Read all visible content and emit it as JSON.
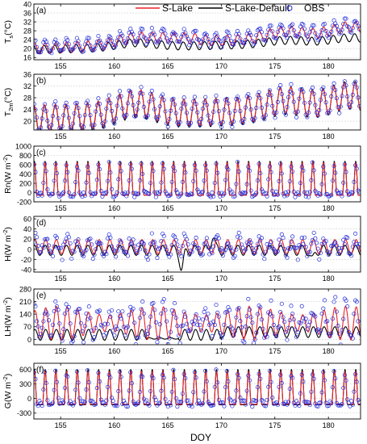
{
  "chart_data": {
    "type": "line",
    "xlabel": "DOY",
    "xlim": [
      152.5,
      183
    ],
    "xticks": [
      155,
      160,
      165,
      170,
      175,
      180
    ],
    "legend": {
      "placement": "top",
      "entries": [
        {
          "name": "S-Lake",
          "color": "#e8232a",
          "marker": "line"
        },
        {
          "name": "S-Lake-Default",
          "color": "#000000",
          "marker": "line"
        },
        {
          "name": "OBS",
          "color": "#1f2bd8",
          "marker": "circle"
        }
      ]
    },
    "grid": "horizontal-dotted",
    "panels": [
      {
        "label": "(a)",
        "ylabel": "Ts(°C)",
        "ylabel_main": "T",
        "ylabel_sub": "s",
        "ylabel_unit": "(°C)",
        "ylim": [
          15,
          40
        ],
        "yticks": [
          16,
          20,
          24,
          28,
          32,
          36,
          40
        ],
        "series": {
          "S-Lake": {
            "base": 20,
            "end": 26,
            "bumps": [
              [
                162,
                3
              ],
              [
                166,
                2
              ],
              [
                176,
                3
              ],
              [
                182,
                4
              ]
            ],
            "amp": 2.4,
            "phase": 0.3
          },
          "S-Lake-Default": {
            "base": 19.5,
            "end": 23,
            "bumps": [
              [
                162,
                2
              ],
              [
                176,
                1.5
              ],
              [
                182,
                2
              ]
            ],
            "amp": 1.8,
            "phase": 0.2
          },
          "OBS": {
            "base": 20.5,
            "end": 26.5,
            "bumps": [
              [
                162,
                3
              ],
              [
                166,
                2
              ],
              [
                176,
                3
              ],
              [
                182,
                4
              ]
            ],
            "amp": 2.8,
            "phase": 0.3,
            "noise": 1.0
          }
        }
      },
      {
        "label": "(b)",
        "ylabel": "T2m(°C)",
        "ylabel_main": "T",
        "ylabel_sub": "2m",
        "ylabel_unit": "(°C)",
        "ylim": [
          17,
          36
        ],
        "yticks": [
          20,
          24,
          28,
          32,
          36
        ],
        "series": {
          "S-Lake": {
            "base": 21,
            "end": 25,
            "bumps": [
              [
                162,
                4
              ],
              [
                176,
                3
              ],
              [
                182,
                4
              ]
            ],
            "amp": 4.5,
            "phase": 0.25
          },
          "S-Lake-Default": {
            "base": 20.5,
            "end": 25,
            "bumps": [
              [
                162,
                4
              ],
              [
                176,
                3
              ],
              [
                182,
                4
              ]
            ],
            "amp": 4.8,
            "phase": 0.25
          },
          "OBS": {
            "base": 21,
            "end": 25,
            "bumps": [
              [
                162,
                4
              ],
              [
                176,
                3
              ],
              [
                182,
                4
              ]
            ],
            "amp": 4.8,
            "phase": 0.25,
            "noise": 0.8
          }
        }
      },
      {
        "label": "(c)",
        "ylabel": "Rn(W m⁻²)",
        "ylabel_main": "Rn(W m",
        "ylabel_sup": "-2",
        "ylabel_unit": ")",
        "ylim": [
          -200,
          1000
        ],
        "yticks": [
          -200,
          0,
          200,
          400,
          600,
          800,
          1000
        ],
        "series": {
          "S-Lake": {
            "type": "diurnal",
            "peak": 650,
            "night": -60,
            "width": 0.22
          },
          "S-Lake-Default": {
            "type": "diurnal",
            "peak": 680,
            "night": -60,
            "width": 0.22
          },
          "OBS": {
            "type": "diurnal",
            "peak": 620,
            "night": -40,
            "width": 0.25,
            "noise": 60
          }
        }
      },
      {
        "label": "(d)",
        "ylabel": "H(W m⁻²)",
        "ylabel_main": "H(W m",
        "ylabel_sup": "-2",
        "ylabel_unit": ")",
        "ylim": [
          -45,
          65
        ],
        "yticks": [
          -40,
          -20,
          0,
          20,
          40,
          60
        ],
        "series": {
          "S-Lake": {
            "type": "small",
            "amp": 14,
            "offset": 5,
            "phase": 0.6
          },
          "S-Lake-Default": {
            "type": "small",
            "amp": 10,
            "offset": -2,
            "phase": 0.55,
            "spikes": [
              [
                166.3,
                -38
              ],
              [
                169.2,
                28
              ],
              [
                178.5,
                -20
              ]
            ]
          },
          "OBS": {
            "type": "small",
            "amp": 16,
            "offset": 6,
            "phase": 0.6,
            "noise": 12
          }
        }
      },
      {
        "label": "(e)",
        "ylabel": "LH(W m⁻²)",
        "ylabel_main": "LH(W m",
        "ylabel_sup": "-2",
        "ylabel_unit": ")",
        "ylim": [
          -30,
          280
        ],
        "yticks": [
          0,
          70,
          140,
          210,
          280
        ],
        "series": {
          "S-Lake": {
            "type": "lh",
            "amp": 70,
            "offset": 90,
            "phase": 0.6
          },
          "S-Lake-Default": {
            "type": "lhdef",
            "amp": 30,
            "offset": 25,
            "phase": 0.6
          },
          "OBS": {
            "type": "lh",
            "amp": 80,
            "offset": 95,
            "phase": 0.6,
            "noise": 45
          }
        }
      },
      {
        "label": "(f)",
        "ylabel": "G(W m⁻²)",
        "ylabel_main": "G(W m",
        "ylabel_sup": "-2",
        "ylabel_unit": ")",
        "ylim": [
          -420,
          720
        ],
        "yticks": [
          -300,
          0,
          300,
          600
        ],
        "series": {
          "S-Lake": {
            "type": "diurnal",
            "peak": 560,
            "night": -120,
            "width": 0.22
          },
          "S-Lake-Default": {
            "type": "diurnal",
            "peak": 600,
            "night": -130,
            "width": 0.22
          },
          "OBS": {
            "type": "diurnal",
            "peak": 540,
            "night": -100,
            "width": 0.25,
            "noise": 70
          }
        }
      }
    ]
  }
}
